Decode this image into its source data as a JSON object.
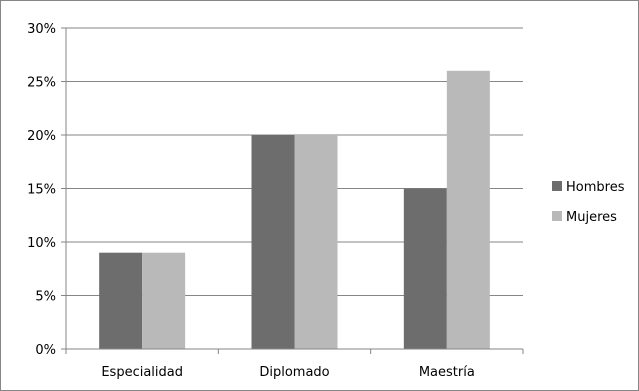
{
  "chart_data": {
    "type": "bar",
    "categories": [
      "Especialidad",
      "Diplomado",
      "Maestría"
    ],
    "series": [
      {
        "name": "Hombres",
        "values": [
          9,
          20,
          15
        ],
        "color": "#6d6d6d"
      },
      {
        "name": "Mujeres",
        "values": [
          9,
          20,
          26
        ],
        "color": "#b9b9b9"
      }
    ],
    "ylim": [
      0,
      30
    ],
    "yticks": [
      0,
      5,
      10,
      15,
      20,
      25,
      30
    ],
    "ytick_labels": [
      "0%",
      "5%",
      "10%",
      "15%",
      "20%",
      "25%",
      "30%"
    ],
    "title": "",
    "xlabel": "",
    "ylabel": "",
    "grid": true,
    "legend_position": "right"
  }
}
